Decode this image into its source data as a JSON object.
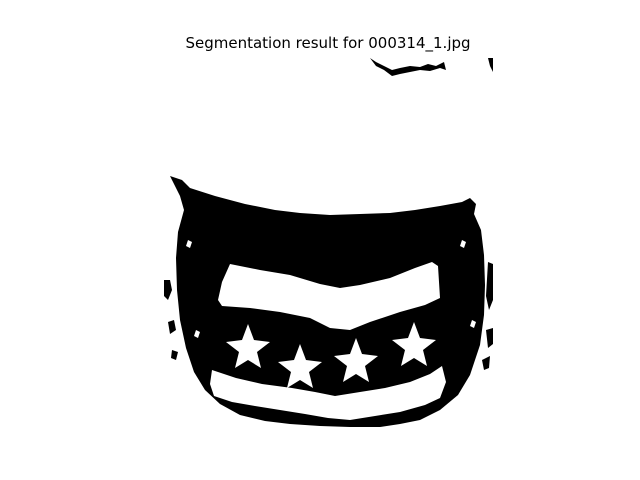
{
  "figure": {
    "title": "Segmentation result for 000314_1.jpg"
  },
  "image": {
    "foreground_color": "#000000",
    "background_color": "#ffffff",
    "mode": "binary mask",
    "star_count": 4
  }
}
